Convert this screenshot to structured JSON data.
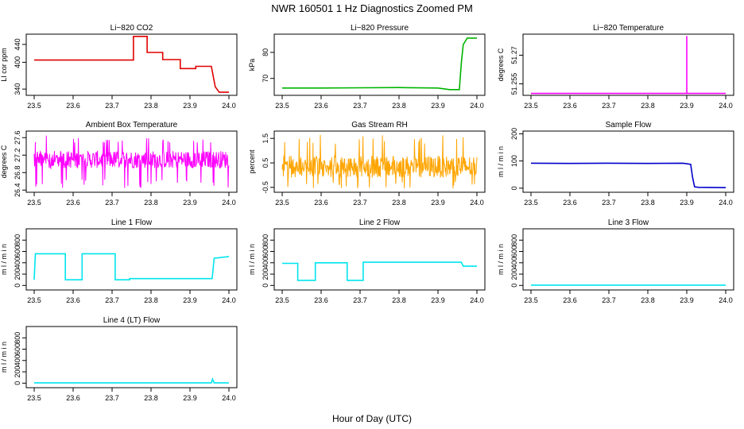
{
  "figure": {
    "title": "NWR  160501  1 Hz Diagnostics Zoomed PM",
    "xlabel": "Hour of Day (UTC)"
  },
  "chart_data": [
    {
      "type": "line",
      "title": "Li−820 CO2",
      "ylabel": "LI cor ppm",
      "color": "#e00000",
      "xlim": [
        23.5,
        24.0
      ],
      "xticks": [
        "23.5",
        "23.6",
        "23.7",
        "23.8",
        "23.9",
        "24.0"
      ],
      "ylim": [
        326,
        463
      ],
      "yticks": [
        340,
        400,
        440
      ],
      "x": [
        23.5,
        23.755,
        23.755,
        23.79,
        23.79,
        23.83,
        23.83,
        23.875,
        23.875,
        23.915,
        23.915,
        23.955,
        23.965,
        23.975,
        24.0
      ],
      "y": [
        405,
        405,
        458,
        458,
        422,
        422,
        406,
        406,
        386,
        386,
        391,
        391,
        345,
        333,
        333
      ]
    },
    {
      "type": "line",
      "title": "Li−820 Pressure",
      "ylabel": "kPa",
      "color": "#00b400",
      "xlim": [
        23.5,
        24.0
      ],
      "xticks": [
        "23.5",
        "23.6",
        "23.7",
        "23.8",
        "23.9",
        "24.0"
      ],
      "ylim": [
        63.5,
        87
      ],
      "yticks": [
        70,
        80
      ],
      "x": [
        23.5,
        23.6,
        23.7,
        23.8,
        23.9,
        23.93,
        23.955,
        23.96,
        23.965,
        23.975,
        24.0
      ],
      "y": [
        66.3,
        66.3,
        66.4,
        66.5,
        66.3,
        65.7,
        65.7,
        76,
        83,
        85.5,
        85.5
      ]
    },
    {
      "type": "line",
      "title": "Li−820 Temperature",
      "ylabel": "degrees C",
      "color": "#ff00ff",
      "xlim": [
        23.5,
        24.0
      ],
      "xticks": [
        "23.5",
        "23.6",
        "23.7",
        "23.8",
        "23.9",
        "24.0"
      ],
      "ylim": [
        51.249,
        51.281
      ],
      "yticks": [
        51.255,
        51.27
      ],
      "x": [
        23.5,
        23.9,
        23.9,
        23.9,
        24.0
      ],
      "y": [
        51.25,
        51.25,
        51.28,
        51.25,
        51.25
      ]
    },
    {
      "type": "line",
      "title": "Ambient Box Temperature",
      "ylabel": "degrees C",
      "color": "#ff00ff",
      "xlim": [
        23.5,
        24.0
      ],
      "xticks": [
        "23.5",
        "23.6",
        "23.7",
        "23.8",
        "23.9",
        "24.0"
      ],
      "ylim": [
        26.35,
        27.75
      ],
      "yticks": [
        26.4,
        26.8,
        27.2,
        27.6
      ],
      "noise": {
        "center": 27.1,
        "amp": 0.2,
        "spike_low": 26.45,
        "spike_high": 27.65
      }
    },
    {
      "type": "line",
      "title": "Gas Stream RH",
      "ylabel": "percent",
      "color": "#ffa500",
      "xlim": [
        23.5,
        24.0
      ],
      "xticks": [
        "23.5",
        "23.6",
        "23.7",
        "23.8",
        "23.9",
        "24.0"
      ],
      "ylim": [
        -0.7,
        1.8
      ],
      "yticks": [
        -0.5,
        0.5,
        1.5
      ],
      "noise": {
        "center": 0.35,
        "amp": 0.45,
        "spike_low": -0.55,
        "spike_high": 1.65
      }
    },
    {
      "type": "line",
      "title": "Sample Flow",
      "ylabel": "m l / m i n",
      "color": "#0000cc",
      "xlim": [
        23.5,
        24.0
      ],
      "xticks": [
        "23.5",
        "23.6",
        "23.7",
        "23.8",
        "23.9",
        "24.0"
      ],
      "ylim": [
        -15,
        210
      ],
      "yticks": [
        0,
        100,
        200
      ],
      "x": [
        23.5,
        23.6,
        23.7,
        23.8,
        23.89,
        23.91,
        23.915,
        23.92,
        23.93,
        24.0
      ],
      "y": [
        92,
        91,
        92,
        91,
        92,
        88,
        40,
        5,
        3,
        2
      ]
    },
    {
      "type": "line",
      "title": "Line 1 Flow",
      "ylabel": "m l / m i n",
      "color": "#00e5ee",
      "xlim": [
        23.5,
        24.0
      ],
      "xticks": [
        "23.5",
        "23.6",
        "23.7",
        "23.8",
        "23.9",
        "24.0"
      ],
      "ylim": [
        -80,
        1000
      ],
      "yticks": [
        0,
        200,
        400,
        600,
        800
      ],
      "x": [
        23.5,
        23.503,
        23.58,
        23.58,
        23.623,
        23.623,
        23.708,
        23.708,
        23.745,
        23.745,
        23.957,
        23.962,
        24.0
      ],
      "y": [
        100,
        560,
        560,
        100,
        100,
        560,
        560,
        100,
        100,
        120,
        120,
        480,
        510
      ]
    },
    {
      "type": "line",
      "title": "Line 2 Flow",
      "ylabel": "m l / m i n",
      "color": "#00e5ee",
      "xlim": [
        23.5,
        24.0
      ],
      "xticks": [
        "23.5",
        "23.6",
        "23.7",
        "23.8",
        "23.9",
        "24.0"
      ],
      "ylim": [
        -80,
        1000
      ],
      "yticks": [
        0,
        200,
        400,
        600,
        800
      ],
      "x": [
        23.5,
        23.54,
        23.54,
        23.585,
        23.585,
        23.667,
        23.667,
        23.708,
        23.708,
        23.96,
        23.965,
        24.0
      ],
      "y": [
        390,
        390,
        90,
        90,
        400,
        400,
        90,
        90,
        410,
        410,
        340,
        340
      ]
    },
    {
      "type": "line",
      "title": "Line 3 Flow",
      "ylabel": "m l / m i n",
      "color": "#00e5ee",
      "xlim": [
        23.5,
        24.0
      ],
      "xticks": [
        "23.5",
        "23.6",
        "23.7",
        "23.8",
        "23.9",
        "24.0"
      ],
      "ylim": [
        -80,
        1000
      ],
      "yticks": [
        0,
        200,
        400,
        600,
        800
      ],
      "x": [
        23.5,
        24.0
      ],
      "y": [
        5,
        5
      ]
    },
    {
      "type": "line",
      "title": "Line 4 (LT) Flow",
      "ylabel": "m l / m i n",
      "color": "#00e5ee",
      "xlim": [
        23.5,
        24.0
      ],
      "xticks": [
        "23.5",
        "23.6",
        "23.7",
        "23.8",
        "23.9",
        "24.0"
      ],
      "ylim": [
        -80,
        1000
      ],
      "yticks": [
        0,
        200,
        400,
        600,
        800
      ],
      "x": [
        23.5,
        23.955,
        23.958,
        23.962,
        24.0
      ],
      "y": [
        5,
        5,
        70,
        5,
        5
      ]
    }
  ]
}
